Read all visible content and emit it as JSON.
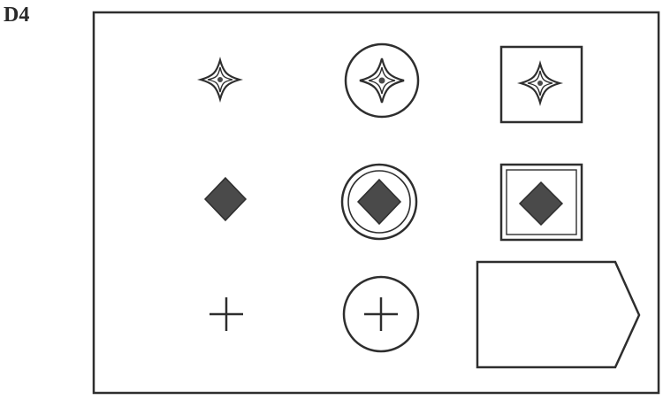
{
  "item_label": "D4",
  "puzzle": {
    "rows": [
      {
        "inner_shape": "four-point-star-icon",
        "cells": [
          "plain",
          "in-circle",
          "in-square"
        ]
      },
      {
        "inner_shape": "filled-diamond-icon",
        "cells": [
          "plain",
          "in-circle",
          "in-square"
        ]
      },
      {
        "inner_shape": "plus-icon",
        "cells": [
          "plain",
          "in-circle",
          "blank-answer-slot"
        ]
      }
    ],
    "colors": {
      "stroke": "#2e2e2e",
      "diamond_fill": "#4a4a4a",
      "background": "#ffffff"
    }
  }
}
